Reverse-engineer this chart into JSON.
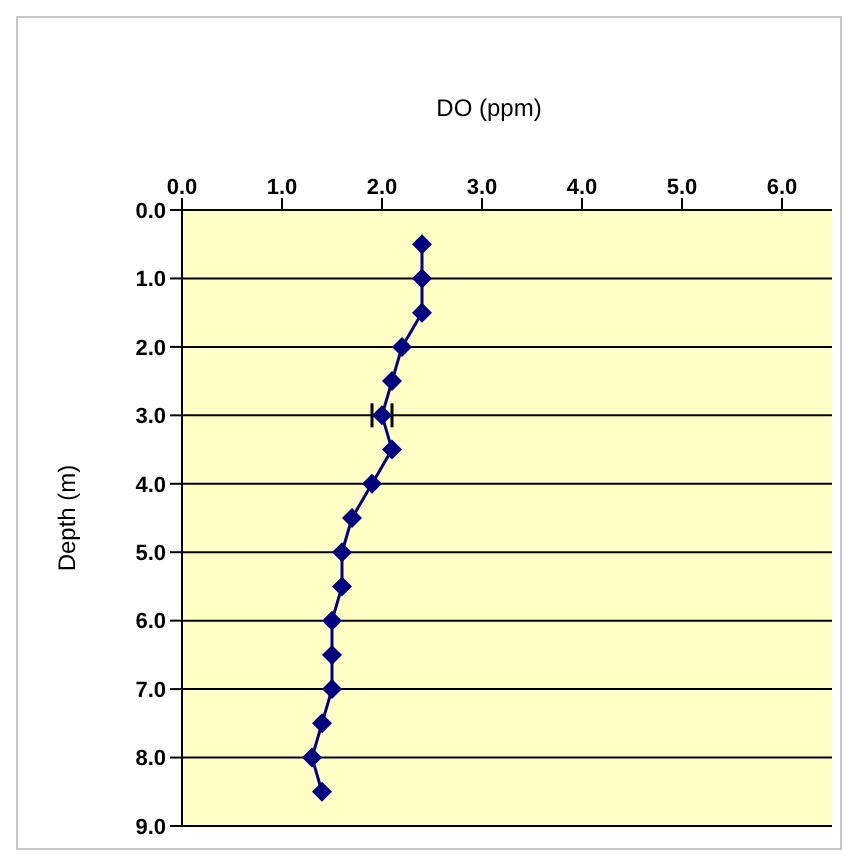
{
  "chart_data": {
    "type": "line",
    "title": "DO (ppm)",
    "ylabel": "Depth (m)",
    "x": [
      2.4,
      2.4,
      2.4,
      2.2,
      2.1,
      2.0,
      2.1,
      1.9,
      1.7,
      1.6,
      1.6,
      1.5,
      1.5,
      1.5,
      1.4,
      1.3,
      1.4
    ],
    "series": [
      {
        "color": "#000080",
        "values": [
          0.5,
          1.0,
          1.5,
          2.0,
          2.5,
          3.0,
          3.5,
          4.0,
          4.5,
          5.0,
          5.5,
          6.0,
          6.5,
          7.0,
          7.5,
          8.0,
          8.5
        ],
        "xerrors": [
          null,
          null,
          null,
          null,
          null,
          0.1,
          null,
          null,
          null,
          null,
          null,
          null,
          null,
          null,
          null,
          null,
          null
        ]
      }
    ],
    "xlim": [
      0,
      6.5
    ],
    "ylim": [
      9,
      0
    ],
    "xticks": [
      {
        "value": 0,
        "label": "0.0"
      },
      {
        "value": 1,
        "label": "1.0"
      },
      {
        "value": 2,
        "label": "2.0"
      },
      {
        "value": 3,
        "label": "3.0"
      },
      {
        "value": 4,
        "label": "4.0"
      },
      {
        "value": 5,
        "label": "5.0"
      },
      {
        "value": 6,
        "label": "6.0"
      }
    ],
    "yticks": [
      {
        "value": 0,
        "label": "0.0"
      },
      {
        "value": 1,
        "label": "1.0"
      },
      {
        "value": 2,
        "label": "2.0"
      },
      {
        "value": 3,
        "label": "3.0"
      },
      {
        "value": 4,
        "label": "4.0"
      },
      {
        "value": 5,
        "label": "5.0"
      },
      {
        "value": 6,
        "label": "6.0"
      },
      {
        "value": 7,
        "label": "7.0"
      },
      {
        "value": 8,
        "label": "8.0"
      },
      {
        "value": 9,
        "label": "9.0"
      }
    ],
    "grid": "y",
    "marker": "diamond",
    "line_style": "solid",
    "legend": false
  }
}
